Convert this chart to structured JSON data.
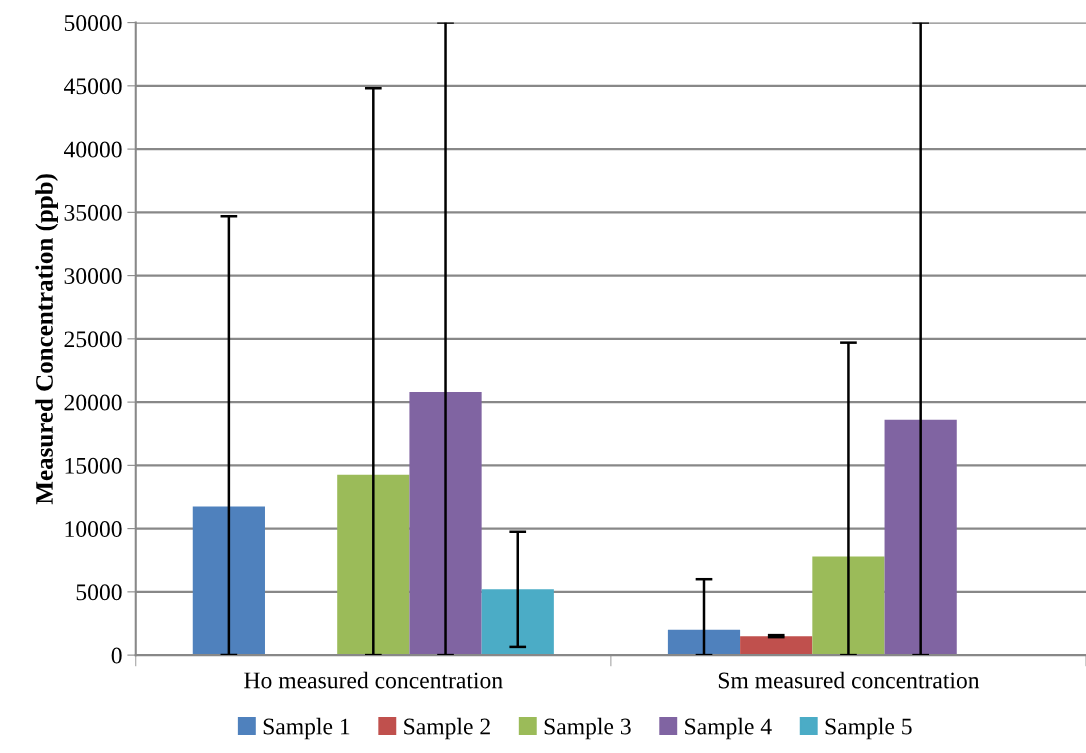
{
  "chart_data": {
    "type": "bar",
    "ylabel": "Measured Concentration (ppb)",
    "categories": [
      "Ho measured concentration",
      "Sm measured concentration"
    ],
    "series": [
      {
        "name": "Sample 1",
        "color": "#4f81bd",
        "values": [
          11750,
          2000
        ],
        "errors": [
          [
            0,
            34700
          ],
          [
            0,
            6000
          ]
        ]
      },
      {
        "name": "Sample 2",
        "color": "#c0504d",
        "values": [
          null,
          1500
        ],
        "errors": [
          null,
          80
        ]
      },
      {
        "name": "Sample 3",
        "color": "#9bbb59",
        "values": [
          14250,
          7800
        ],
        "errors": [
          [
            0,
            44800
          ],
          [
            0,
            24700
          ]
        ]
      },
      {
        "name": "Sample 4",
        "color": "#8064a2",
        "values": [
          20800,
          18600
        ],
        "errors": [
          [
            0,
            50000
          ],
          [
            0,
            50000
          ]
        ]
      },
      {
        "name": "Sample 5",
        "color": "#4bacc6",
        "values": [
          5200,
          null
        ],
        "errors": [
          4550,
          null
        ]
      }
    ],
    "ylim": [
      0,
      50000
    ],
    "yticks": [
      0,
      5000,
      10000,
      15000,
      20000,
      25000,
      30000,
      35000,
      40000,
      45000,
      50000
    ],
    "grid": "y",
    "legend": "bottom"
  }
}
